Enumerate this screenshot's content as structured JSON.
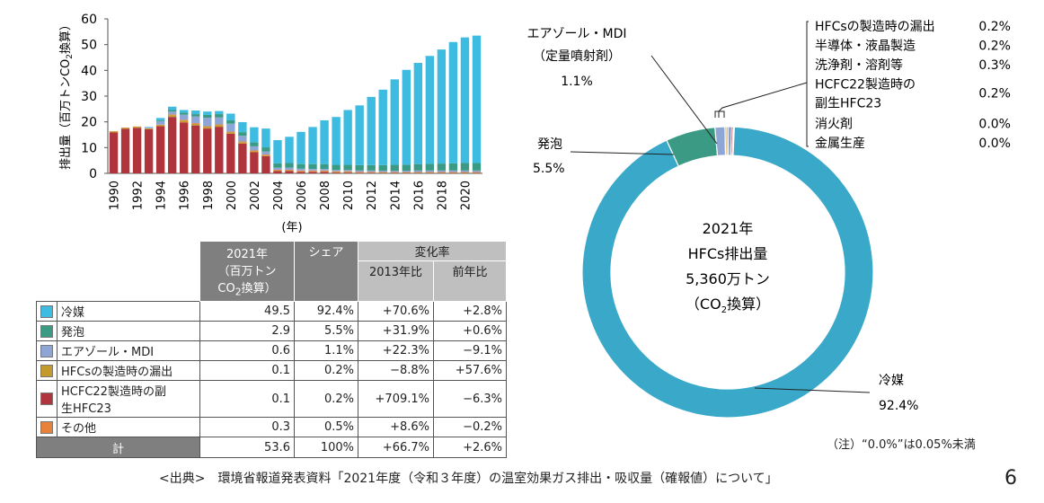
{
  "chart_data": [
    {
      "type": "bar",
      "stacked": true,
      "xlabel": "(年)",
      "ylabel": "排出量（百万トンCO2換算）",
      "ylim": [
        0,
        60
      ],
      "yticks": [
        0,
        10,
        20,
        30,
        40,
        50,
        60
      ],
      "grid": false,
      "categories": [
        1990,
        1991,
        1992,
        1993,
        1994,
        1995,
        1996,
        1997,
        1998,
        1999,
        2000,
        2001,
        2002,
        2003,
        2004,
        2005,
        2006,
        2007,
        2008,
        2009,
        2010,
        2011,
        2012,
        2013,
        2014,
        2015,
        2016,
        2017,
        2018,
        2019,
        2020,
        2021
      ],
      "xtick_labels": [
        "1990",
        "1992",
        "1994",
        "1996",
        "1998",
        "2000",
        "2002",
        "2004",
        "2006",
        "2008",
        "2010",
        "2012",
        "2014",
        "2016",
        "2018",
        "2020"
      ],
      "series": [
        {
          "name": "HCFC22製造時の副生HFC23",
          "color": "#b0343c",
          "values": [
            15.9,
            17.3,
            17.7,
            17.1,
            18.3,
            21.9,
            19.8,
            18.6,
            17.4,
            18.1,
            15.4,
            11.6,
            8.2,
            6.7,
            0.9,
            0.9,
            0.6,
            0.6,
            0.6,
            0.3,
            0.3,
            0.2,
            0.2,
            0.1,
            0.1,
            0.1,
            0.1,
            0.1,
            0.1,
            0.1,
            0.1,
            0.1
          ]
        },
        {
          "name": "HFCsの製造時の漏出",
          "color": "#c39a2c",
          "values": [
            0.4,
            0.4,
            0.4,
            0.3,
            0.4,
            0.7,
            0.7,
            0.6,
            0.6,
            0.6,
            0.5,
            0.5,
            0.4,
            0.3,
            0.2,
            0.2,
            0.2,
            0.2,
            0.2,
            0.2,
            0.2,
            0.1,
            0.1,
            0.1,
            0.1,
            0.1,
            0.1,
            0.1,
            0.1,
            0.1,
            0.1,
            0.1
          ]
        },
        {
          "name": "その他",
          "color": "#e8823a",
          "values": [
            0.1,
            0.1,
            0.1,
            0.1,
            0.2,
            0.3,
            0.3,
            0.3,
            0.3,
            0.3,
            0.3,
            0.3,
            0.3,
            0.3,
            0.3,
            0.3,
            0.3,
            0.3,
            0.3,
            0.3,
            0.3,
            0.3,
            0.3,
            0.3,
            0.3,
            0.3,
            0.3,
            0.3,
            0.3,
            0.3,
            0.3,
            0.3
          ]
        },
        {
          "name": "エアゾール・MDI",
          "color": "#8ea6d6",
          "values": [
            0,
            0,
            0,
            0.3,
            1.4,
            1.1,
            2.0,
            2.6,
            3.3,
            2.7,
            3.1,
            2.2,
            1.6,
            1.2,
            0.8,
            0.8,
            0.7,
            0.6,
            0.6,
            0.5,
            0.5,
            0.5,
            0.5,
            0.5,
            0.5,
            0.5,
            0.6,
            0.6,
            0.6,
            0.6,
            0.6,
            0.6
          ]
        },
        {
          "name": "発泡",
          "color": "#3a9a84",
          "values": [
            0,
            0,
            0,
            0,
            0.4,
            0.6,
            0.8,
            0.9,
            1.1,
            1.3,
            1.3,
            1.4,
            1.5,
            1.6,
            1.7,
            1.8,
            1.8,
            1.9,
            1.9,
            2.0,
            2.0,
            2.1,
            2.1,
            2.2,
            2.3,
            2.4,
            2.5,
            2.6,
            2.7,
            2.8,
            2.9,
            2.9
          ]
        },
        {
          "name": "冷媒",
          "color": "#3dbbe0",
          "values": [
            0,
            0,
            0,
            0.2,
            0.8,
            1.3,
            1.0,
            1.4,
            1.3,
            1.2,
            2.6,
            3.9,
            5.9,
            7.3,
            9.0,
            10.2,
            12.5,
            14.4,
            17.0,
            18.6,
            21.3,
            23.2,
            26.5,
            29.3,
            33.2,
            36.8,
            39.3,
            41.9,
            44.3,
            47.1,
            48.8,
            49.5
          ]
        }
      ]
    },
    {
      "type": "pie",
      "donut": true,
      "center_lines": [
        "2021年",
        "HFCs排出量",
        "5,360万トン"
      ],
      "center_unit_pre": "（CO",
      "center_unit_sub": "2",
      "center_unit_post": "換算）",
      "slices": [
        {
          "name": "冷媒",
          "value": 92.4,
          "color": "#3aa9c9"
        },
        {
          "name": "発泡",
          "value": 5.5,
          "color": "#3a9a84"
        },
        {
          "name": "エアゾール・MDI",
          "value": 1.1,
          "color": "#8ea6d6"
        },
        {
          "name": "HFCsの製造時の漏出",
          "value": 0.2,
          "color": "#c39a2c"
        },
        {
          "name": "半導体・液晶製造",
          "value": 0.2,
          "color": "#7d6fb0"
        },
        {
          "name": "洗浄剤・溶剤等",
          "value": 0.3,
          "color": "#5c7aa8"
        },
        {
          "name": "HFCF22製造時の副生HFC23",
          "value": 0.2,
          "color": "#b0343c"
        },
        {
          "name": "消火剤",
          "value": 0.0,
          "color": "#777777"
        },
        {
          "name": "金属生産",
          "value": 0.0,
          "color": "#555555"
        }
      ],
      "labels": {
        "aerosol_line1": "エアゾール・MDI",
        "aerosol_line2": "（定量噴射剤）",
        "aerosol_pct": "1.1%",
        "foam_name": "発泡",
        "foam_pct": "5.5%",
        "refrig_name": "冷媒",
        "refrig_pct": "92.4%"
      },
      "small_items": [
        {
          "name": "HFCsの製造時の漏出",
          "pct": "0.2%"
        },
        {
          "name": "半導体・液晶製造",
          "pct": "0.2%"
        },
        {
          "name": "洗浄剤・溶剤等",
          "pct": "0.3%"
        },
        {
          "name": "HCFC22製造時の\n副生HFC23",
          "pct": "0.2%"
        },
        {
          "name": "消火剤",
          "pct": "0.0%"
        },
        {
          "name": "金属生産",
          "pct": "0.0%"
        }
      ]
    },
    {
      "type": "table",
      "headers": {
        "col_2021_l1": "2021年",
        "col_2021_l2": "（百万トン",
        "col_2021_l3_pre": "CO",
        "col_2021_l3_sub": "2",
        "col_2021_l3_post": "換算）",
        "col_share": "シェア",
        "col_change": "変化率",
        "col_vs2013": "2013年比",
        "col_vsprev": "前年比"
      },
      "rows": [
        {
          "color": "#3dbbe0",
          "name": "冷媒",
          "v2021": "49.5",
          "share": "92.4%",
          "vs2013": "+70.6%",
          "vsprev": "+2.8%"
        },
        {
          "color": "#3a9a84",
          "name": "発泡",
          "v2021": "2.9",
          "share": "5.5%",
          "vs2013": "+31.9%",
          "vsprev": "+0.6%"
        },
        {
          "color": "#8ea6d6",
          "name": "エアゾール・MDI",
          "v2021": "0.6",
          "share": "1.1%",
          "vs2013": "+22.3%",
          "vsprev": "−9.1%"
        },
        {
          "color": "#c39a2c",
          "name": "HFCsの製造時の漏出",
          "v2021": "0.1",
          "share": "0.2%",
          "vs2013": "−8.8%",
          "vsprev": "+57.6%"
        },
        {
          "color": "#b0343c",
          "name": "HCFC22製造時の副\n生HFC23",
          "v2021": "0.1",
          "share": "0.2%",
          "vs2013": "+709.1%",
          "vsprev": "−6.3%"
        },
        {
          "color": "#e8823a",
          "name": "その他",
          "v2021": "0.3",
          "share": "0.5%",
          "vs2013": "+8.6%",
          "vsprev": "−0.2%"
        }
      ],
      "total": {
        "name": "計",
        "v2021": "53.6",
        "share": "100%",
        "vs2013": "+66.7%",
        "vsprev": "+2.6%"
      }
    }
  ],
  "source": "<出典>　環境省報道発表資料「2021年度（令和３年度）の温室効果ガス排出・吸収量（確報値）について」",
  "page_number": "6",
  "footnote": "（注）“0.0%”は0.05%未満"
}
